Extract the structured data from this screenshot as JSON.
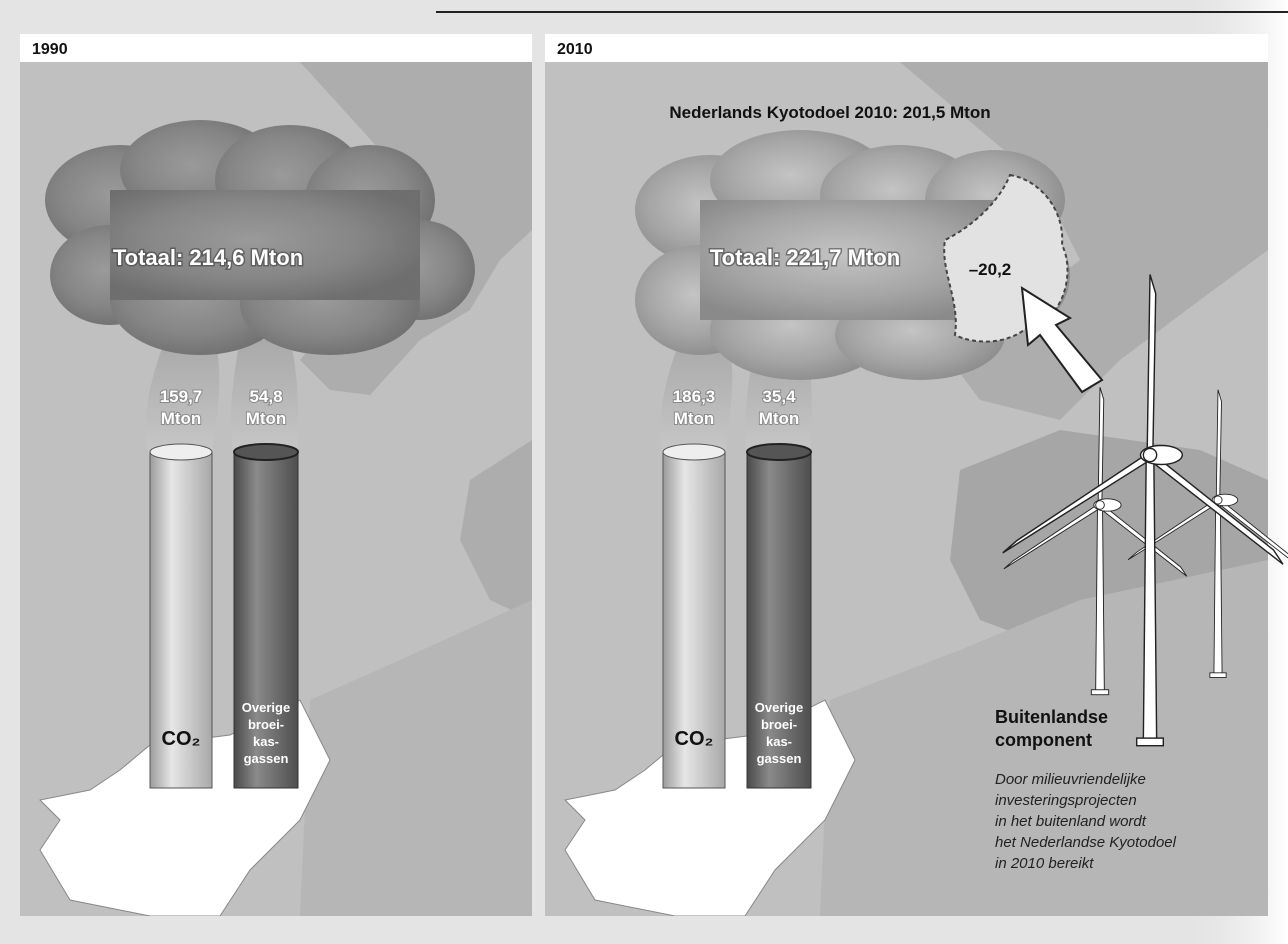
{
  "panels": [
    {
      "year": "1990",
      "total": "Totaal: 214,6 Mton",
      "stacks": [
        {
          "value": [
            "159,7",
            "Mton"
          ],
          "label": [
            "CO₂"
          ]
        },
        {
          "value": [
            "54,8",
            "Mton"
          ],
          "label": [
            "Overige",
            "broei-",
            "kas-",
            "gassen"
          ]
        }
      ]
    },
    {
      "year": "2010",
      "target": "Nederlands Kyotodoel 2010: 201,5 Mton",
      "total": "Totaal: 221,7 Mton",
      "reduction": "–20,2",
      "stacks": [
        {
          "value": [
            "186,3",
            "Mton"
          ],
          "label": [
            "CO₂"
          ]
        },
        {
          "value": [
            "35,4",
            "Mton"
          ],
          "label": [
            "Overige",
            "broei-",
            "kas-",
            "gassen"
          ]
        }
      ],
      "foreign": {
        "title": [
          "Buitenlandse",
          "component"
        ],
        "description": [
          "Door milieuvriendelijke",
          "investeringsprojecten",
          "in het buitenland wordt",
          "het Nederlandse Kyotodoel",
          "in 2010 bereikt"
        ]
      }
    }
  ]
}
